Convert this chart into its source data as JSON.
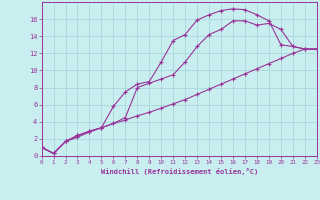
{
  "xlabel": "Windchill (Refroidissement éolien,°C)",
  "background_color": "#c8eef0",
  "grid_color": "#aad8da",
  "line_color": "#993399",
  "xlim": [
    0,
    23
  ],
  "ylim": [
    0,
    18
  ],
  "xticks": [
    0,
    1,
    2,
    3,
    4,
    5,
    6,
    7,
    8,
    9,
    10,
    11,
    12,
    13,
    14,
    15,
    16,
    17,
    18,
    19,
    20,
    21,
    22,
    23
  ],
  "yticks": [
    0,
    2,
    4,
    6,
    8,
    10,
    12,
    14,
    16
  ],
  "y_lower": [
    1.0,
    0.3,
    1.7,
    2.4,
    2.9,
    3.3,
    3.8,
    4.2,
    4.7,
    5.1,
    5.6,
    6.1,
    6.6,
    7.2,
    7.8,
    8.4,
    9.0,
    9.6,
    10.2,
    10.8,
    11.4,
    12.0,
    12.5,
    12.5
  ],
  "y_upper": [
    1.0,
    0.3,
    1.7,
    2.2,
    2.8,
    3.3,
    5.8,
    7.5,
    8.4,
    8.7,
    11.0,
    13.5,
    14.2,
    15.9,
    16.5,
    17.0,
    17.2,
    17.1,
    16.5,
    15.8,
    13.0,
    12.8,
    12.5,
    12.5
  ],
  "y_mid": [
    1.0,
    0.3,
    1.7,
    2.4,
    2.9,
    3.3,
    3.8,
    4.5,
    8.0,
    8.5,
    9.0,
    9.5,
    11.0,
    12.8,
    14.2,
    14.8,
    15.8,
    15.8,
    15.3,
    15.5,
    14.8,
    12.8,
    12.5,
    12.5
  ]
}
